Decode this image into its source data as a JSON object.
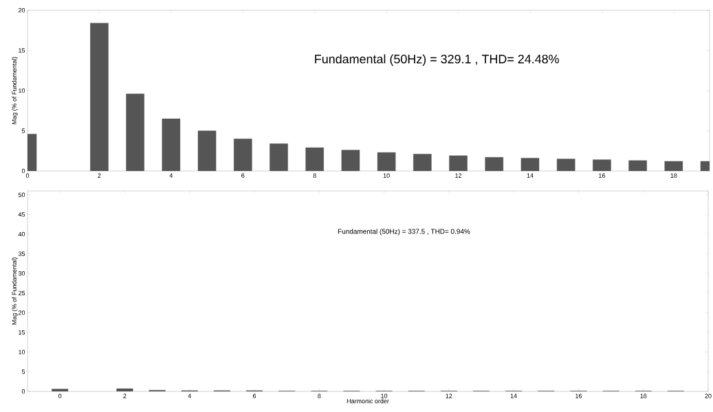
{
  "chart_data": [
    {
      "type": "bar",
      "ylabel": "Mag (% of Fundamental)",
      "annotations": [
        "Fundamental (50Hz) = 329.1 , THD= 24.48%"
      ],
      "x": [
        0,
        1,
        2,
        3,
        4,
        5,
        6,
        7,
        8,
        9,
        10,
        11,
        12,
        13,
        14,
        15,
        16,
        17,
        18,
        19
      ],
      "values": [
        4.6,
        null,
        18.4,
        9.6,
        6.5,
        5.0,
        4.0,
        3.4,
        2.9,
        2.6,
        2.3,
        2.1,
        1.9,
        1.7,
        1.6,
        1.5,
        1.4,
        1.3,
        1.2,
        1.2
      ],
      "color": "#555555",
      "xlim": [
        0,
        19
      ],
      "ylim": [
        0,
        20
      ],
      "xticks": [
        0,
        2,
        4,
        6,
        8,
        10,
        12,
        14,
        16,
        18
      ],
      "yticks": [
        0,
        5,
        10,
        15,
        20
      ]
    },
    {
      "type": "bar",
      "xlabel": "Harmonic order",
      "ylabel": "Mag (% of Fundamental)",
      "annotations": [
        "Fundamental (50Hz) = 337.5 , THD= 0.94%"
      ],
      "x": [
        0,
        1,
        2,
        3,
        4,
        5,
        6,
        7,
        8,
        9,
        10,
        11,
        12,
        13,
        14,
        15,
        16,
        17,
        18,
        19
      ],
      "values": [
        0.6,
        null,
        0.7,
        0.3,
        0.2,
        0.2,
        0.2,
        0.1,
        0.1,
        0.1,
        0.1,
        0.1,
        0.1,
        0.1,
        0.1,
        0.1,
        0.1,
        0.1,
        0.1,
        0.1
      ],
      "color": "#555555",
      "xlim": [
        -1,
        20
      ],
      "ylim": [
        0,
        51
      ],
      "xticks": [
        0,
        2,
        4,
        6,
        8,
        10,
        12,
        14,
        16,
        18,
        20
      ],
      "yticks": [
        0,
        5,
        10,
        15,
        20,
        25,
        30,
        35,
        40,
        45,
        50
      ]
    }
  ]
}
